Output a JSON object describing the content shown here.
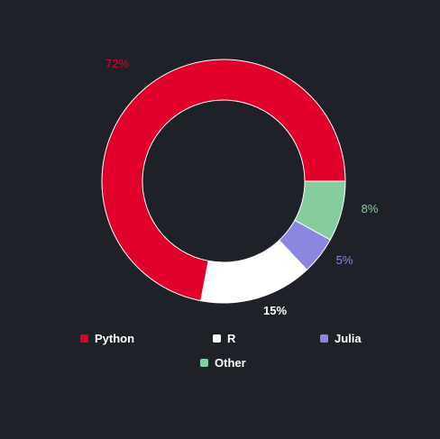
{
  "chart_data": {
    "type": "pie",
    "subtype": "donut",
    "title": "",
    "categories": [
      "Python",
      "R",
      "Julia",
      "Other"
    ],
    "values": [
      72,
      15,
      5,
      8
    ],
    "value_labels": [
      "72%",
      "15%",
      "5%",
      "8%"
    ],
    "colors": [
      "#e0002a",
      "#ffffff",
      "#8b87df",
      "#86cc9e"
    ],
    "label_colors": [
      "#e0002a",
      "#ffffff",
      "#8b87df",
      "#86cc9e"
    ],
    "legend_position": "bottom",
    "background": "#1f2129"
  }
}
